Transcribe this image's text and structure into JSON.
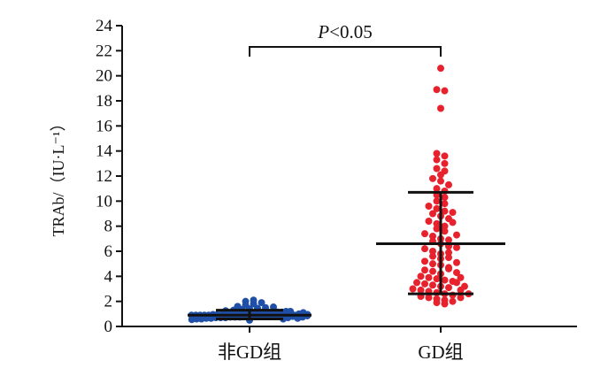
{
  "chart_data": {
    "type": "scatter",
    "ylabel": "TRAb/（IU·L⁻¹）",
    "ylim": [
      0,
      24
    ],
    "yticks": [
      0,
      2,
      4,
      6,
      8,
      10,
      12,
      14,
      16,
      18,
      20,
      22,
      24
    ],
    "categories": [
      "非GD组",
      "GD组"
    ],
    "annotation": {
      "p_symbol": "P",
      "p_rest": "<0.05"
    },
    "colors": {
      "non_gd": "#1f4fa6",
      "gd": "#e8222d",
      "axis": "#111111"
    },
    "series": [
      {
        "category": "非GD组",
        "mean": 0.9,
        "sd_low": 0.6,
        "sd_high": 1.3,
        "values": [
          0.5,
          0.55,
          0.6,
          0.6,
          0.65,
          0.65,
          0.7,
          0.7,
          0.7,
          0.75,
          0.75,
          0.75,
          0.8,
          0.8,
          0.8,
          0.8,
          0.85,
          0.85,
          0.85,
          0.85,
          0.9,
          0.9,
          0.9,
          0.9,
          0.9,
          0.95,
          0.95,
          0.95,
          0.95,
          1.0,
          1.0,
          1.0,
          1.0,
          1.0,
          1.05,
          1.05,
          1.05,
          1.1,
          1.1,
          1.1,
          1.15,
          1.15,
          1.2,
          1.2,
          1.25,
          1.3,
          1.35,
          1.4,
          1.45,
          1.5,
          1.55,
          1.6,
          1.7,
          1.8,
          1.9,
          2.0,
          2.1,
          0.6,
          0.7,
          0.8,
          0.9,
          1.0,
          1.1,
          0.65,
          0.75,
          0.85,
          0.95
        ]
      },
      {
        "category": "GD组",
        "mean": 6.6,
        "sd_low": 2.6,
        "sd_high": 10.7,
        "values": [
          20.6,
          18.9,
          18.8,
          17.4,
          13.8,
          13.6,
          13.3,
          13.0,
          12.6,
          12.4,
          12.1,
          11.8,
          11.6,
          11.3,
          11.0,
          10.8,
          10.5,
          10.3,
          10.0,
          9.8,
          9.6,
          9.4,
          9.2,
          9.0,
          8.8,
          8.6,
          8.4,
          8.2,
          8.0,
          7.8,
          7.6,
          7.4,
          7.2,
          7.0,
          6.8,
          6.6,
          6.4,
          6.2,
          6.0,
          5.8,
          5.6,
          5.4,
          5.2,
          5.0,
          4.9,
          4.7,
          4.5,
          4.4,
          4.2,
          4.0,
          3.9,
          3.8,
          3.7,
          3.6,
          3.5,
          3.4,
          3.3,
          3.2,
          3.1,
          3.0,
          2.9,
          2.8,
          2.7,
          2.6,
          2.5,
          2.4,
          2.3,
          2.2,
          2.1,
          2.0,
          1.9,
          1.8,
          6.9,
          7.3,
          5.9,
          5.5,
          4.6,
          4.3,
          3.9,
          3.5,
          3.2,
          2.9,
          2.6,
          2.3,
          8.3,
          9.1,
          6.3,
          5.1
        ]
      }
    ]
  }
}
